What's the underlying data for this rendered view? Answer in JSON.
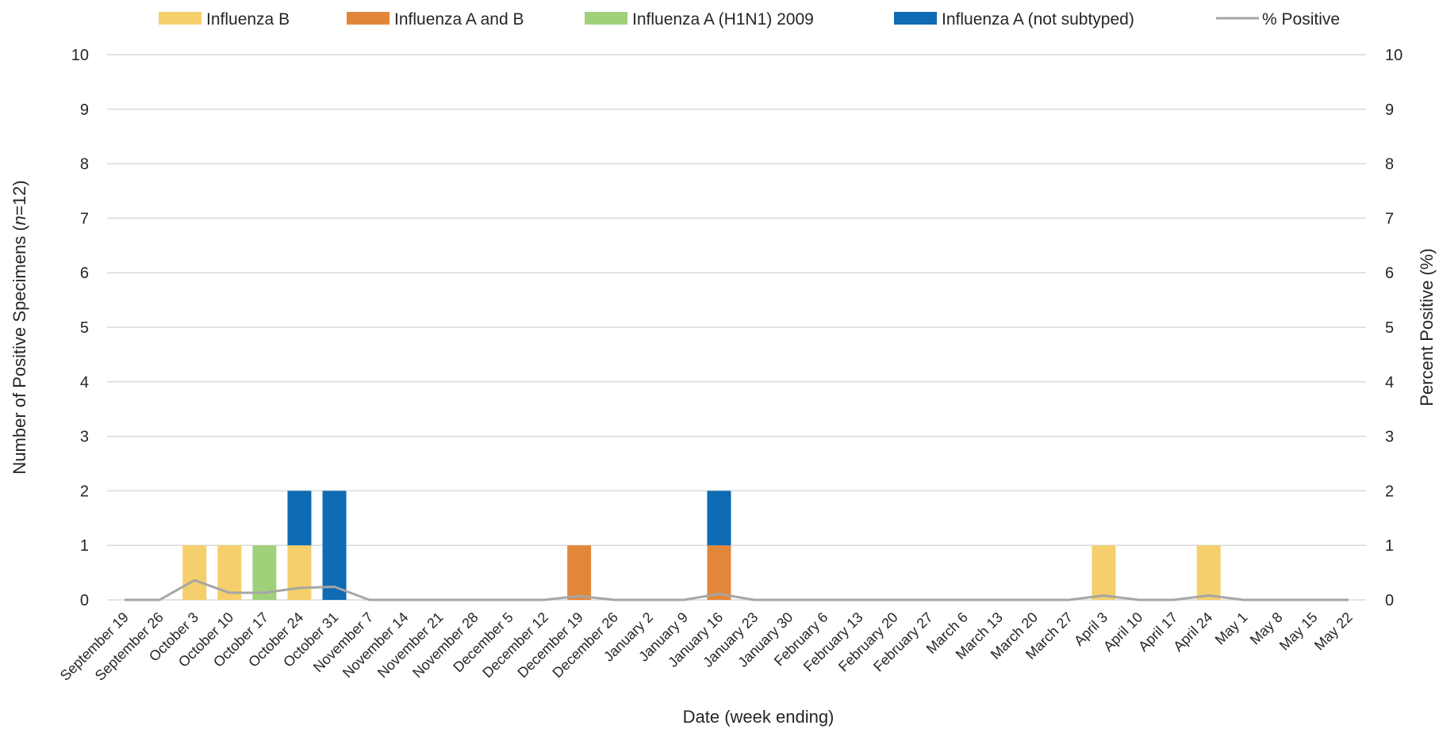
{
  "chart_data": {
    "type": "bar",
    "stacked": true,
    "title": "",
    "xlabel": "Date (week ending)",
    "ylabel_prefix": "Number of Positive Specimens (",
    "ylabel_italic": "n",
    "ylabel_suffix": "=12)",
    "y2label": "Percent Positive (%)",
    "ylim": [
      0,
      10
    ],
    "y2lim": [
      0,
      10
    ],
    "yticks": [
      "0",
      "1",
      "2",
      "3",
      "4",
      "5",
      "6",
      "7",
      "8",
      "9",
      "10"
    ],
    "grid": true,
    "legend_position": "top",
    "categories": [
      "September 19",
      "September 26",
      "October 3",
      "October 10",
      "October 17",
      "October 24",
      "October 31",
      "November 7",
      "November 14",
      "November 21",
      "November 28",
      "December 5",
      "December 12",
      "December 19",
      "December 26",
      "January 2",
      "January 9",
      "January 16",
      "January 23",
      "January 30",
      "February 6",
      "February 13",
      "February 20",
      "February 27",
      "March 6",
      "March 13",
      "March 20",
      "March 27",
      "April 3",
      "April 10",
      "April 17",
      "April 24",
      "May 1",
      "May 8",
      "May 15",
      "May 22"
    ],
    "series": [
      {
        "name": "Influenza B",
        "color": "#F5CF6B",
        "kind": "bar",
        "values": [
          0,
          0,
          1,
          1,
          0,
          1,
          0,
          0,
          0,
          0,
          0,
          0,
          0,
          0,
          0,
          0,
          0,
          0,
          0,
          0,
          0,
          0,
          0,
          0,
          0,
          0,
          0,
          0,
          1,
          0,
          0,
          1,
          0,
          0,
          0,
          0
        ]
      },
      {
        "name": "Influenza A and B",
        "color": "#E2873A",
        "kind": "bar",
        "values": [
          0,
          0,
          0,
          0,
          0,
          0,
          0,
          0,
          0,
          0,
          0,
          0,
          0,
          1,
          0,
          0,
          0,
          1,
          0,
          0,
          0,
          0,
          0,
          0,
          0,
          0,
          0,
          0,
          0,
          0,
          0,
          0,
          0,
          0,
          0,
          0
        ]
      },
      {
        "name": "Influenza A (H1N1) 2009",
        "color": "#A1D07A",
        "kind": "bar",
        "values": [
          0,
          0,
          0,
          0,
          1,
          0,
          0,
          0,
          0,
          0,
          0,
          0,
          0,
          0,
          0,
          0,
          0,
          0,
          0,
          0,
          0,
          0,
          0,
          0,
          0,
          0,
          0,
          0,
          0,
          0,
          0,
          0,
          0,
          0,
          0,
          0
        ]
      },
      {
        "name": "Influenza A (not subtyped)",
        "color": "#0E6BB4",
        "kind": "bar",
        "values": [
          0,
          0,
          0,
          0,
          0,
          1,
          2,
          0,
          0,
          0,
          0,
          0,
          0,
          0,
          0,
          0,
          0,
          1,
          0,
          0,
          0,
          0,
          0,
          0,
          0,
          0,
          0,
          0,
          0,
          0,
          0,
          0,
          0,
          0,
          0,
          0
        ]
      },
      {
        "name": "% Positive",
        "color": "#A6A6A6",
        "kind": "line",
        "axis": "right",
        "values": [
          0,
          0,
          0.36,
          0.13,
          0.13,
          0.22,
          0.24,
          0,
          0,
          0,
          0,
          0,
          0,
          0.07,
          0,
          0,
          0,
          0.11,
          0,
          0,
          0,
          0,
          0,
          0,
          0,
          0,
          0,
          0,
          0.08,
          0,
          0,
          0.08,
          0,
          0,
          0,
          0
        ]
      }
    ]
  }
}
